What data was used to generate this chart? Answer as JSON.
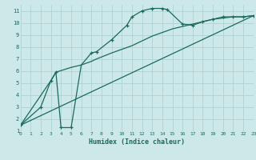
{
  "bg_color": "#cce8e8",
  "grid_color": "#aacece",
  "line_color": "#1a6b5a",
  "line1_x": [
    0,
    2,
    3,
    3.5,
    4,
    5,
    6,
    7,
    7.5,
    9,
    10.5,
    11,
    12,
    13,
    14,
    14.5,
    16,
    17,
    18,
    19,
    20,
    21,
    22,
    23
  ],
  "line1_y": [
    1.5,
    3.0,
    5.2,
    5.9,
    1.3,
    1.3,
    6.5,
    7.5,
    7.6,
    8.6,
    9.8,
    10.5,
    11.0,
    11.2,
    11.2,
    11.1,
    9.9,
    9.8,
    10.1,
    10.3,
    10.5,
    10.5,
    10.5,
    10.6
  ],
  "line1_markers_x": [
    0,
    2,
    3,
    3.5,
    4,
    5,
    7,
    7.5,
    9,
    10.5,
    11,
    12,
    13,
    14,
    14.5,
    16,
    17,
    18,
    19,
    20,
    21,
    22,
    23
  ],
  "line1_markers_y": [
    1.5,
    3.0,
    5.2,
    5.9,
    1.3,
    1.3,
    7.5,
    7.6,
    8.6,
    9.8,
    10.5,
    11.0,
    11.2,
    11.2,
    11.1,
    9.9,
    9.8,
    10.1,
    10.3,
    10.5,
    10.5,
    10.5,
    10.6
  ],
  "line2_x": [
    0,
    3,
    3.5,
    5,
    6,
    7,
    7.5,
    9,
    10,
    11,
    12,
    13,
    14,
    15,
    16,
    17,
    18,
    19,
    20,
    21,
    22,
    23
  ],
  "line2_y": [
    1.5,
    5.2,
    5.9,
    6.3,
    6.5,
    6.8,
    7.0,
    7.5,
    7.8,
    8.1,
    8.5,
    8.9,
    9.2,
    9.5,
    9.7,
    9.9,
    10.1,
    10.3,
    10.4,
    10.5,
    10.5,
    10.6
  ],
  "line3_x": [
    0,
    23
  ],
  "line3_y": [
    1.5,
    10.6
  ],
  "xlim": [
    0,
    23
  ],
  "ylim": [
    1,
    11.5
  ],
  "xlabel": "Humidex (Indice chaleur)",
  "xticks": [
    0,
    1,
    2,
    3,
    4,
    5,
    6,
    7,
    8,
    9,
    10,
    11,
    12,
    13,
    14,
    15,
    16,
    17,
    18,
    19,
    20,
    21,
    22,
    23
  ],
  "yticks": [
    1,
    2,
    3,
    4,
    5,
    6,
    7,
    8,
    9,
    10,
    11
  ]
}
